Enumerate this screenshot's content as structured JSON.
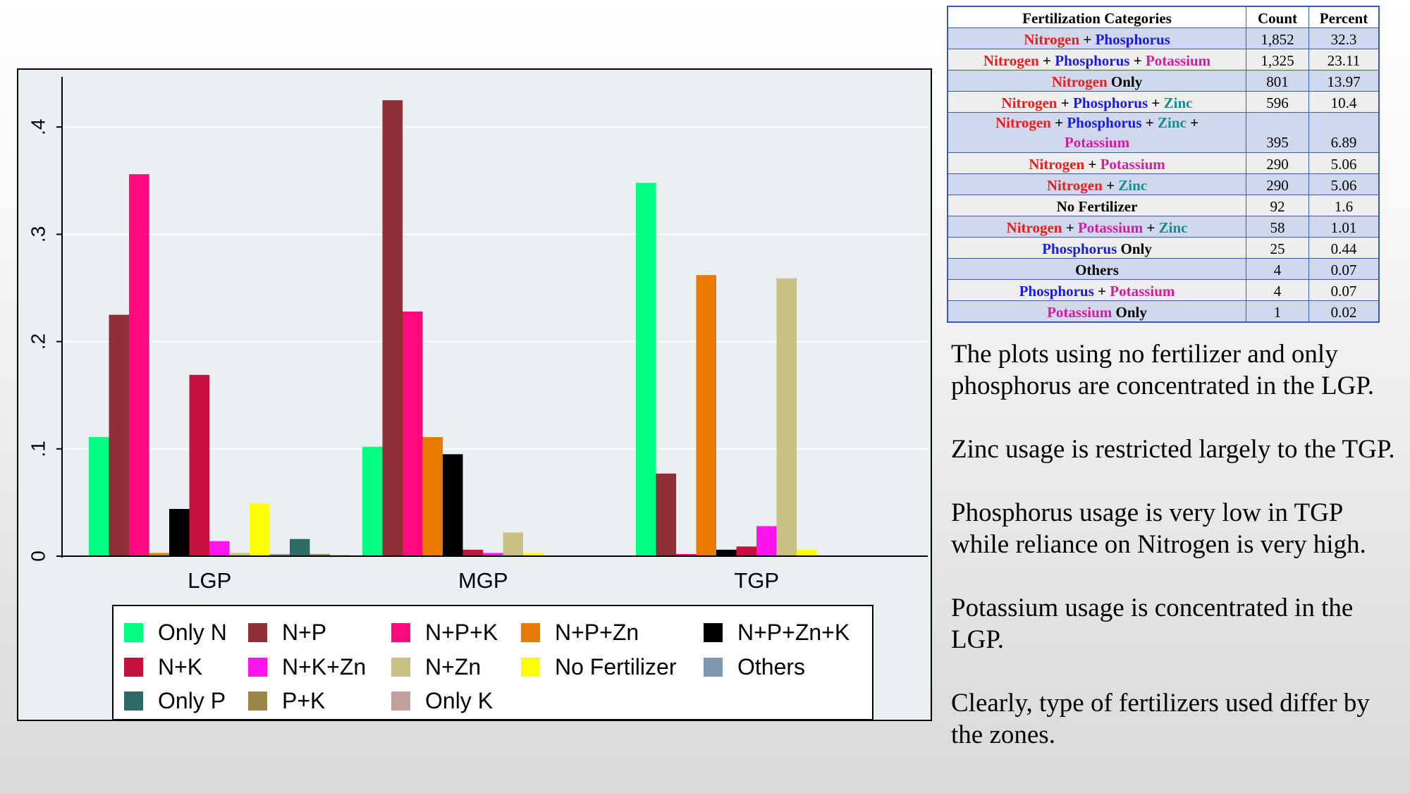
{
  "chart_data": {
    "type": "bar",
    "categories": [
      "LGP",
      "MGP",
      "TGP"
    ],
    "ylim": [
      0,
      0.45
    ],
    "yticks": [
      0,
      0.1,
      0.2,
      0.3,
      0.4
    ],
    "ytick_labels": [
      "0",
      ".1",
      ".2",
      ".3",
      ".4"
    ],
    "grid": true,
    "legend_position": "bottom",
    "series": [
      {
        "name": "Only N",
        "color": "#00ff80",
        "values": [
          0.111,
          0.102,
          0.348
        ]
      },
      {
        "name": "N+P",
        "color": "#8f3038",
        "values": [
          0.225,
          0.425,
          0.077
        ]
      },
      {
        "name": "N+P+K",
        "color": "#ff0a7e",
        "values": [
          0.356,
          0.228,
          0.002
        ]
      },
      {
        "name": "N+P+Zn",
        "color": "#e87a00",
        "values": [
          0.003,
          0.111,
          0.262
        ]
      },
      {
        "name": "N+P+Zn+K",
        "color": "#000000",
        "values": [
          0.044,
          0.095,
          0.006
        ]
      },
      {
        "name": "N+K",
        "color": "#c8103c",
        "values": [
          0.169,
          0.006,
          0.009
        ]
      },
      {
        "name": "N+K+Zn",
        "color": "#ff14ee",
        "values": [
          0.014,
          0.003,
          0.028
        ]
      },
      {
        "name": "N+Zn",
        "color": "#c8c084",
        "values": [
          0.003,
          0.022,
          0.259
        ]
      },
      {
        "name": "No Fertilizer",
        "color": "#ffff00",
        "values": [
          0.049,
          0.003,
          0.006
        ]
      },
      {
        "name": "Others",
        "color": "#7f97b0",
        "values": [
          0.002,
          0.0,
          0.0
        ]
      },
      {
        "name": "Only P",
        "color": "#2f6b66",
        "values": [
          0.016,
          0.0,
          0.0
        ]
      },
      {
        "name": "P+K",
        "color": "#9a8648",
        "values": [
          0.002,
          0.0,
          0.0
        ]
      },
      {
        "name": "Only K",
        "color": "#c4a09a",
        "values": [
          0.001,
          0.0,
          0.0
        ]
      }
    ],
    "legend_rows": [
      [
        "Only N",
        "N+P",
        "N+P+K",
        "N+P+Zn",
        "N+P+Zn+K"
      ],
      [
        "N+K",
        "N+K+Zn",
        "N+Zn",
        "No Fertilizer",
        "Others"
      ],
      [
        "Only P",
        "P+K",
        "Only K"
      ]
    ]
  },
  "table": {
    "headers": [
      "Fertilization Categories",
      "Count",
      "Percent"
    ],
    "rows": [
      {
        "parts": [
          {
            "t": "Nitrogen",
            "c": "n"
          },
          {
            "t": " + ",
            "c": "x"
          },
          {
            "t": "Phosphorus",
            "c": "p"
          }
        ],
        "count": "1,852",
        "percent": "32.3"
      },
      {
        "parts": [
          {
            "t": "Nitrogen",
            "c": "n"
          },
          {
            "t": " + ",
            "c": "x"
          },
          {
            "t": "Phosphorus",
            "c": "p"
          },
          {
            "t": " + ",
            "c": "x"
          },
          {
            "t": "Potassium",
            "c": "k"
          }
        ],
        "count": "1,325",
        "percent": "23.11"
      },
      {
        "parts": [
          {
            "t": "Nitrogen",
            "c": "n"
          },
          {
            "t": " Only",
            "c": "x"
          }
        ],
        "count": "801",
        "percent": "13.97"
      },
      {
        "parts": [
          {
            "t": "Nitrogen",
            "c": "n"
          },
          {
            "t": " + ",
            "c": "x"
          },
          {
            "t": "Phosphorus",
            "c": "p"
          },
          {
            "t": " + ",
            "c": "x"
          },
          {
            "t": "Zinc",
            "c": "z"
          }
        ],
        "count": "596",
        "percent": "10.4"
      },
      {
        "parts": [
          {
            "t": "Nitrogen",
            "c": "n"
          },
          {
            "t": " + ",
            "c": "x"
          },
          {
            "t": "Phosphorus",
            "c": "p"
          },
          {
            "t": " + ",
            "c": "x"
          },
          {
            "t": "Zinc",
            "c": "z"
          },
          {
            "t": " +",
            "c": "x"
          },
          {
            "t": "\n",
            "c": "br"
          },
          {
            "t": "Potassium",
            "c": "k"
          }
        ],
        "count": "395",
        "percent": "6.89",
        "tall": true
      },
      {
        "parts": [
          {
            "t": "Nitrogen",
            "c": "n"
          },
          {
            "t": " + ",
            "c": "x"
          },
          {
            "t": "Potassium",
            "c": "k"
          }
        ],
        "count": "290",
        "percent": "5.06"
      },
      {
        "parts": [
          {
            "t": "Nitrogen",
            "c": "n"
          },
          {
            "t": " + ",
            "c": "x"
          },
          {
            "t": "Zinc",
            "c": "z"
          }
        ],
        "count": "290",
        "percent": "5.06"
      },
      {
        "parts": [
          {
            "t": "No Fertilizer",
            "c": "x"
          }
        ],
        "count": "92",
        "percent": "1.6"
      },
      {
        "parts": [
          {
            "t": "Nitrogen",
            "c": "n"
          },
          {
            "t": " + ",
            "c": "x"
          },
          {
            "t": "Potassium",
            "c": "k"
          },
          {
            "t": " + ",
            "c": "x"
          },
          {
            "t": "Zinc",
            "c": "z"
          }
        ],
        "count": "58",
        "percent": "1.01"
      },
      {
        "parts": [
          {
            "t": "Phosphorus",
            "c": "p"
          },
          {
            "t": " Only",
            "c": "x"
          }
        ],
        "count": "25",
        "percent": "0.44"
      },
      {
        "parts": [
          {
            "t": "Others",
            "c": "x"
          }
        ],
        "count": "4",
        "percent": "0.07"
      },
      {
        "parts": [
          {
            "t": "Phosphorus",
            "c": "p"
          },
          {
            "t": " + ",
            "c": "x"
          },
          {
            "t": "Potassium",
            "c": "k"
          }
        ],
        "count": "4",
        "percent": "0.07"
      },
      {
        "parts": [
          {
            "t": "Potassium",
            "c": "k"
          },
          {
            "t": " Only",
            "c": "x"
          }
        ],
        "count": "1",
        "percent": "0.02"
      }
    ]
  },
  "notes": [
    "The plots using no fertilizer and only phosphorus are concentrated in the LGP.",
    "Zinc usage is restricted largely to the TGP.",
    "Phosphorus usage is very low in TGP while reliance on Nitrogen is very high.",
    "Potassium usage is concentrated in the LGP.",
    "Clearly, type of fertilizers used differ by the zones."
  ]
}
